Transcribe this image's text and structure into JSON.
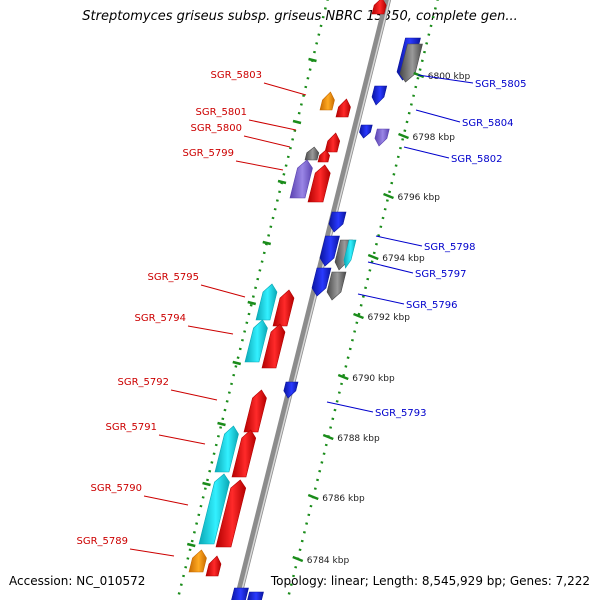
{
  "header": {
    "title": "Streptomyces griseus subsp. griseus NBRC 13350, complete gen..."
  },
  "footer": {
    "accession": "Accession: NC_010572",
    "summary": "Topology: linear; Length: 8,545,929 bp; Genes: 7,222"
  },
  "colors": {
    "forward_label": "#cc0000",
    "reverse_label": "#0000cc",
    "backbone": "#8c8c8c",
    "tick": "#1a8c1a"
  },
  "scale_ticks": [
    "6800 kbp",
    "6798 kbp",
    "6796 kbp",
    "6794 kbp",
    "6792 kbp",
    "6790 kbp",
    "6788 kbp",
    "6786 kbp",
    "6784 kbp"
  ],
  "forward_labels": [
    "SGR_5803",
    "SGR_5801",
    "SGR_5800",
    "SGR_5799",
    "SGR_5795",
    "SGR_5794",
    "SGR_5792",
    "SGR_5791",
    "SGR_5790",
    "SGR_5789"
  ],
  "reverse_labels": [
    "SGR_5805",
    "SGR_5804",
    "SGR_5802",
    "SGR_5798",
    "SGR_5797",
    "SGR_5796",
    "SGR_5793"
  ]
}
